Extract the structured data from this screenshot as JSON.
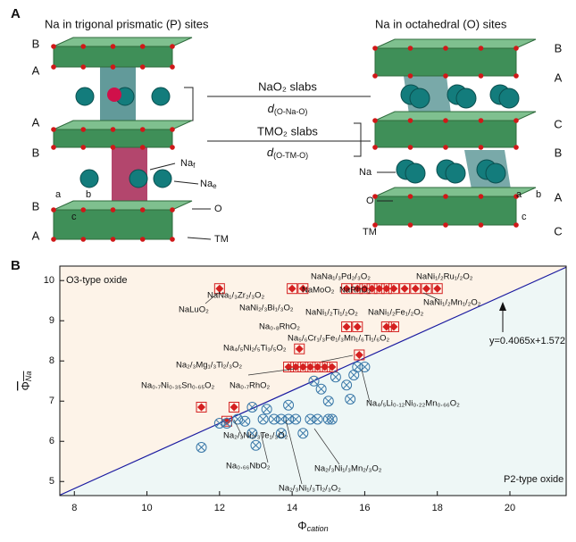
{
  "panel_labels": [
    "A",
    "B"
  ],
  "diagram": {
    "left_title": "Na in trigonal prismatic (P) sites",
    "right_title": "Na in octahedral (O) sites",
    "left_stacking": [
      "B",
      "A",
      "A",
      "B",
      "B",
      "A"
    ],
    "right_stacking": [
      "B",
      "A",
      "C",
      "B",
      "A",
      "C"
    ],
    "nao2_slab": "NaO₂ slabs",
    "d_nao": {
      "symbol": "d",
      "subscript": "(O-Na-O)"
    },
    "tmo2_slab": "TMO₂ slabs",
    "d_tmo": {
      "symbol": "d",
      "subscript": "(O-TM-O)"
    },
    "na_f": {
      "symbol": "Na",
      "subscript": "f"
    },
    "na_e": {
      "symbol": "Na",
      "subscript": "e"
    },
    "left_o": "O",
    "left_tm": "TM",
    "right_na": "Na",
    "right_o": "O",
    "right_tm": "TM",
    "axes": [
      "a",
      "b",
      "c"
    ]
  },
  "chart_data": {
    "type": "scatter",
    "xlabel": {
      "symbol": "Φ",
      "subscript": "cation"
    },
    "ylabel": {
      "symbol": "Φ",
      "subscript": "Na"
    },
    "xlim": [
      7.6,
      21.55
    ],
    "ylim": [
      4.65,
      10.36
    ],
    "xticks": [
      8,
      10,
      12,
      14,
      16,
      18,
      20
    ],
    "yticks": [
      5,
      6,
      7,
      8,
      9,
      10
    ],
    "fit": {
      "label": "y=0.4065x+1.572",
      "slope": 0.4065,
      "intercept": 1.572,
      "color": "#1a1aa0"
    },
    "series": [
      {
        "name": "O3-type oxide",
        "color": "#d42020",
        "x": [
          12.0,
          14.0,
          14.3,
          15.5,
          15.8,
          16.0,
          16.2,
          16.4,
          16.6,
          16.8,
          17.1,
          17.4,
          17.7,
          18.0,
          15.5,
          15.8,
          16.6,
          16.8,
          14.2,
          15.85,
          13.9,
          14.1,
          14.3,
          14.5,
          14.7,
          14.9,
          15.1,
          11.5,
          12.4,
          12.2
        ],
        "values": [
          9.8,
          9.8,
          9.8,
          9.8,
          9.8,
          9.8,
          9.8,
          9.8,
          9.8,
          9.8,
          9.8,
          9.8,
          9.8,
          9.8,
          8.85,
          8.85,
          8.85,
          8.85,
          8.3,
          8.15,
          7.85,
          7.85,
          7.85,
          7.85,
          7.85,
          7.85,
          7.85,
          6.85,
          6.85,
          6.5
        ]
      },
      {
        "name": "P2-type oxide",
        "color": "#3a78a8",
        "x": [
          11.5,
          12.0,
          12.2,
          12.5,
          12.7,
          12.9,
          13.0,
          13.2,
          13.3,
          13.5,
          13.7,
          13.9,
          14.1,
          14.3,
          14.5,
          14.7,
          15.0,
          15.1,
          14.8,
          15.0,
          15.2,
          15.5,
          15.7,
          15.8,
          16.0,
          14.6,
          13.9,
          12.9,
          13.7,
          15.6
        ],
        "values": [
          5.85,
          6.45,
          6.45,
          6.55,
          6.5,
          6.2,
          5.9,
          6.55,
          6.8,
          6.55,
          6.55,
          6.55,
          6.55,
          6.2,
          6.55,
          6.55,
          6.55,
          6.55,
          7.3,
          7.0,
          7.6,
          7.4,
          7.65,
          7.85,
          7.85,
          7.5,
          6.9,
          6.85,
          6.2,
          7.05
        ]
      }
    ],
    "annotations": [
      "NaLuO₂",
      "NaNa₁/₃Zr₂/₃O₂",
      "NaNi₂/₃Bi₁/₃O₂",
      "NaNa₁/₃Pd₂/₃O₂",
      "NaNi₁/₂Ru₁/₂O₂",
      "NaMoO₂",
      "NaRhO₂",
      "NaNi₁/₂Ti₁/₂O₂",
      "NaNi₁/₂Fe₁/₂O₂",
      "NaNi₁/₂Mn₁/₂O₂",
      "Na₀.₈RhO₂",
      "Na₅/₆Cr₁/₃Fe₁/₃Mn₁/₆Ti₁/₆O₂",
      "Na₄/₅Ni₂/₅Ti₃/₅O₂",
      "Na₂/₃Mg₁/₃Ti₂/₃O₂",
      "Na₀.₇Ni₀.₃₅Sn₀.₆₅O₂",
      "Na₀.₇RhO₂",
      "Na₄/₅Li₀.₁₂Ni₀.₂₂Mn₀.₆₆O₂",
      "Na₂/₃Ni₂/₃Te₁/₃O₂",
      "Na₀.₆₆NbO₂",
      "Na₂/₃Ni₁/₃Mn₂/₃O₂",
      "Na₂/₃Ni₁/₃Ti₂/₃O₂"
    ]
  }
}
